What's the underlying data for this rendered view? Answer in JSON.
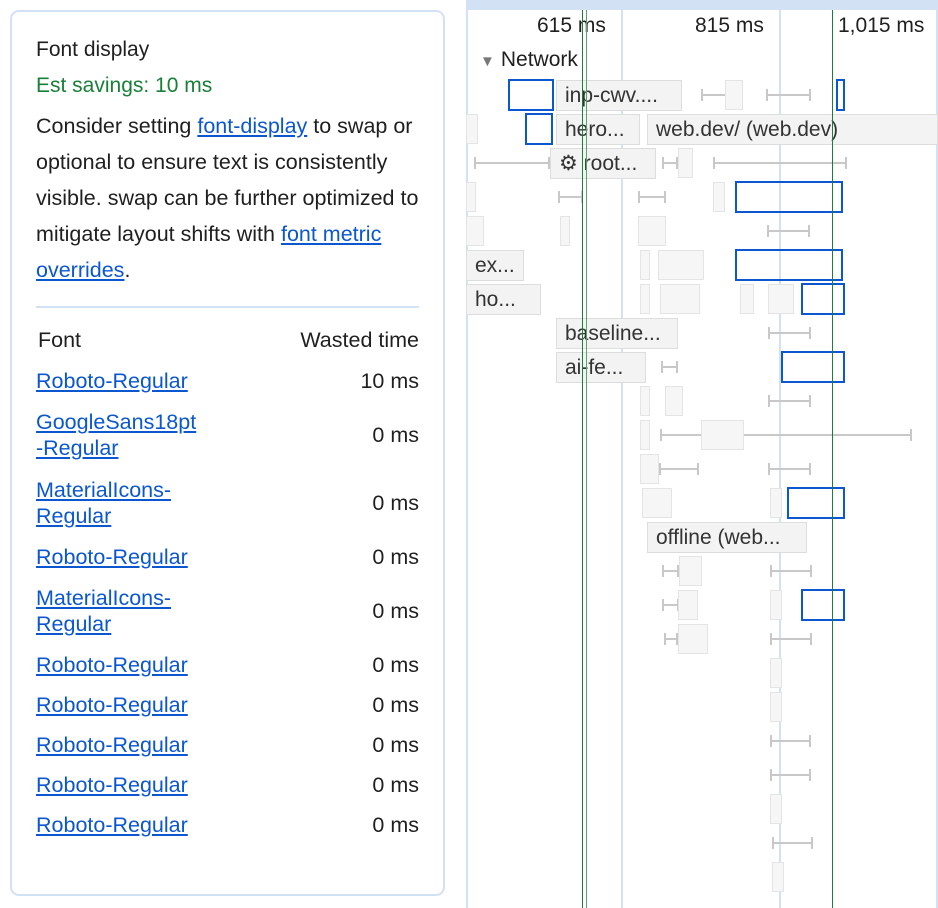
{
  "insight": {
    "title": "Font display",
    "savings": "Est savings: 10 ms",
    "desc_1": "Consider setting ",
    "link_font_display": "font-display",
    "desc_2": " to swap or optional to ensure text is consistently visible. swap can be further optimized to mitigate layout shifts with ",
    "link_font_metric": "font metric overrides",
    "desc_3": ".",
    "table": {
      "headers": [
        "Font",
        "Wasted time"
      ],
      "rows": [
        {
          "font": "Roboto-Regular",
          "wasted": "10 ms"
        },
        {
          "font": "GoogleSans18pt-Regular",
          "wasted": "0 ms"
        },
        {
          "font": "MaterialIcons-Regular",
          "wasted": "0 ms"
        },
        {
          "font": "Roboto-Regular",
          "wasted": "0 ms"
        },
        {
          "font": "MaterialIcons-Regular",
          "wasted": "0 ms"
        },
        {
          "font": "Roboto-Regular",
          "wasted": "0 ms"
        },
        {
          "font": "Roboto-Regular",
          "wasted": "0 ms"
        },
        {
          "font": "Roboto-Regular",
          "wasted": "0 ms"
        },
        {
          "font": "Roboto-Regular",
          "wasted": "0 ms"
        },
        {
          "font": "Roboto-Regular",
          "wasted": "0 ms"
        }
      ]
    }
  },
  "timeline": {
    "ticks": [
      "615 ms",
      "815 ms",
      "1,015 ms"
    ],
    "track_title": "Network",
    "request_labels": [
      "inp-cwv....",
      "hero...",
      "web.dev/ (web.dev)",
      "⚙ root...",
      "ex...",
      "ho...",
      "baseline...",
      "ai-fe...",
      "offline (web..."
    ],
    "colors": {
      "selection": "#0b57d0",
      "marker": "#188038",
      "savings": "#188038"
    }
  }
}
